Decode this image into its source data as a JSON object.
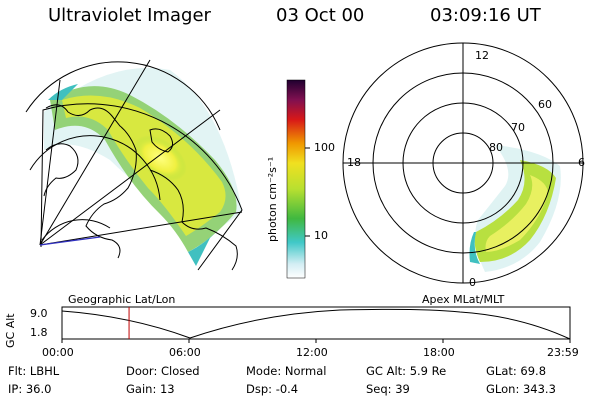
{
  "header": {
    "instrument": "Ultraviolet Imager",
    "date": "03 Oct 00",
    "time": "03:09:16 UT"
  },
  "colorbar": {
    "unit_label": "photon cm⁻²s⁻¹",
    "tick_labels": [
      "100",
      "10"
    ]
  },
  "left_panel": {
    "caption": "Geographic Lat/Lon"
  },
  "right_panel": {
    "caption": "Apex MLat/MLT",
    "mlt_labels": [
      "12",
      "18",
      "6",
      "0"
    ],
    "lat_labels": [
      "60",
      "70",
      "80"
    ]
  },
  "altitude_plot": {
    "ylabel": "GC Alt",
    "y_ticks": [
      "9.0",
      "1.8"
    ],
    "x_ticks": [
      "00:00",
      "06:00",
      "12:00",
      "18:00",
      "23:59"
    ],
    "current_time_fraction": 0.132
  },
  "footer": {
    "row1": [
      {
        "label": "Flt:",
        "value": "LBHL"
      },
      {
        "label": "Door:",
        "value": "Closed"
      },
      {
        "label": "Mode:",
        "value": "Normal"
      },
      {
        "label": "GC Alt:",
        "value": "5.9 Re"
      },
      {
        "label": "GLat:",
        "value": "69.8"
      }
    ],
    "row2": [
      {
        "label": "IP:",
        "value": "36.0"
      },
      {
        "label": "Gain:",
        "value": "13"
      },
      {
        "label": "Dsp:",
        "value": "-0.4"
      },
      {
        "label": "Seq:",
        "value": "39"
      },
      {
        "label": "GLon:",
        "value": "343.3"
      }
    ]
  },
  "colors": {
    "colorbar_stops": [
      "#ffffff",
      "#c8ecf4",
      "#30c8c8",
      "#3cb83c",
      "#c8e028",
      "#f0e020",
      "#f09000",
      "#d01818",
      "#7a1050",
      "#200030"
    ]
  }
}
